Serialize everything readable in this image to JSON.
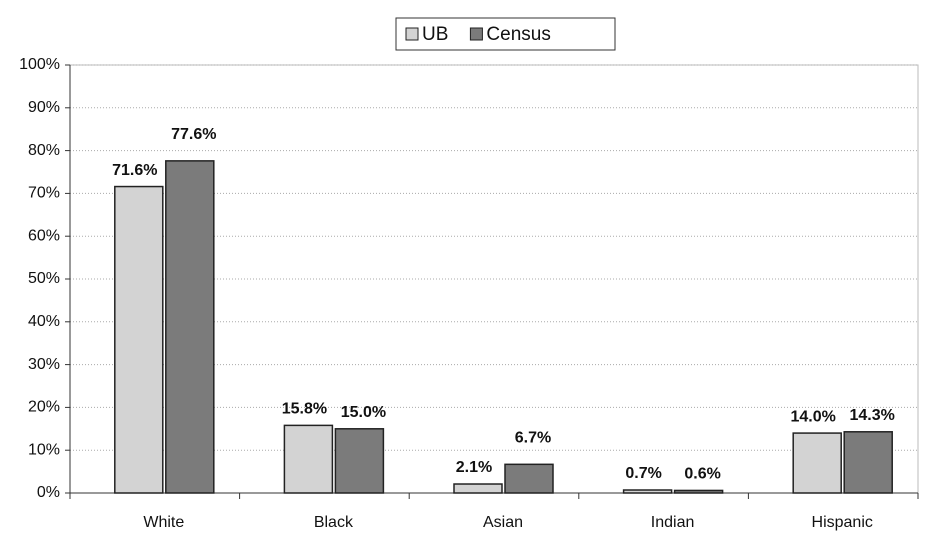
{
  "chart_data": {
    "type": "bar",
    "categories": [
      "White",
      "Black",
      "Asian",
      "Indian",
      "Hispanic"
    ],
    "series": [
      {
        "name": "UB",
        "color": "#d3d3d3",
        "values": [
          71.6,
          15.8,
          2.1,
          0.7,
          14.0
        ],
        "value_labels": [
          "71.6%",
          "15.8%",
          "2.1%",
          "0.7%",
          "14.0%"
        ]
      },
      {
        "name": "Census",
        "color": "#7b7b7b",
        "values": [
          77.6,
          15.0,
          6.7,
          0.6,
          14.3
        ],
        "value_labels": [
          "77.6%",
          "15.0%",
          "6.7%",
          "0.6%",
          "14.3%"
        ]
      }
    ],
    "ylim": [
      0,
      100
    ],
    "yticks": [
      {
        "value": 0,
        "label": "0%"
      },
      {
        "value": 10,
        "label": "10%"
      },
      {
        "value": 20,
        "label": "20%"
      },
      {
        "value": 30,
        "label": "30%"
      },
      {
        "value": 40,
        "label": "40%"
      },
      {
        "value": 50,
        "label": "50%"
      },
      {
        "value": 60,
        "label": "60%"
      },
      {
        "value": 70,
        "label": "70%"
      },
      {
        "value": 80,
        "label": "80%"
      },
      {
        "value": 90,
        "label": "90%"
      },
      {
        "value": 100,
        "label": "100%"
      }
    ],
    "grid": true,
    "legend": "top"
  }
}
